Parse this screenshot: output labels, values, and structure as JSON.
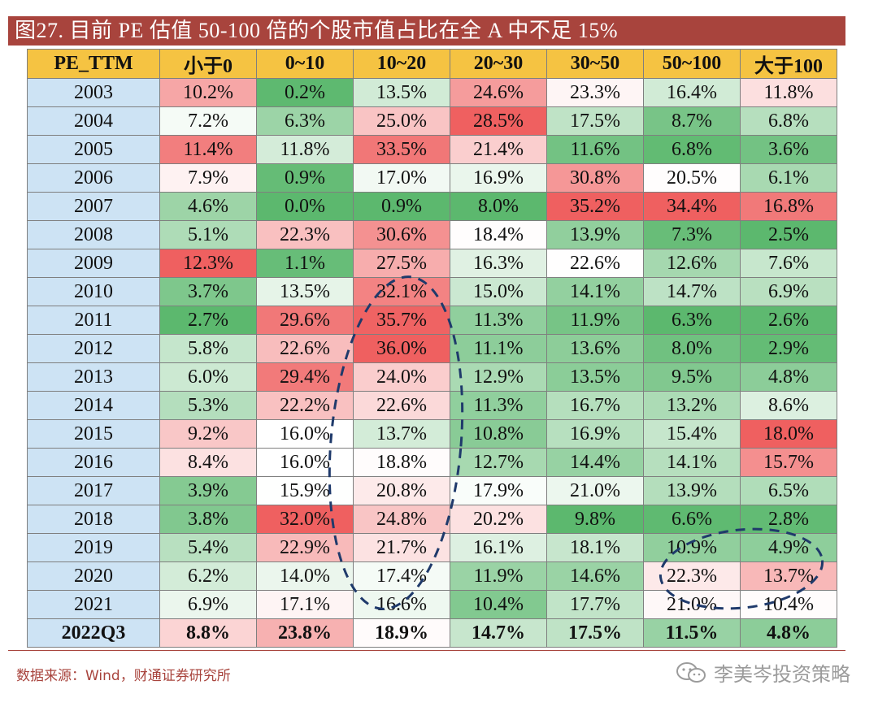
{
  "title": "图27. 目前 PE 估值 50-100 倍的个股市值占比在全 A 中不足 15%",
  "source": "数据来源：Wind，财通证券研究所",
  "watermark": "李美岑投资策略",
  "colors": {
    "title_bg": "#a8443d",
    "header_bg": "#f5c342",
    "year_bg": "#cde3f4",
    "red": "#f06363",
    "green": "#5cb96f",
    "circle": "#1f3a6b"
  },
  "chart_data": {
    "type": "table",
    "title": "图27. 目前 PE 估值 50-100 倍的个股市值占比在全 A 中不足 15%",
    "row_header": "PE_TTM",
    "columns": [
      "小于0",
      "0~10",
      "10~20",
      "20~30",
      "30~50",
      "50~100",
      "大于100"
    ],
    "rows": [
      {
        "label": "2003",
        "values": [
          "10.2%",
          "0.2%",
          "13.5%",
          "24.6%",
          "23.3%",
          "16.4%",
          "11.8%"
        ]
      },
      {
        "label": "2004",
        "values": [
          "7.2%",
          "6.3%",
          "25.0%",
          "28.5%",
          "17.5%",
          "8.7%",
          "6.8%"
        ]
      },
      {
        "label": "2005",
        "values": [
          "11.4%",
          "11.8%",
          "33.5%",
          "21.4%",
          "11.6%",
          "6.8%",
          "3.6%"
        ]
      },
      {
        "label": "2006",
        "values": [
          "7.9%",
          "0.9%",
          "17.0%",
          "16.9%",
          "30.8%",
          "20.5%",
          "6.1%"
        ]
      },
      {
        "label": "2007",
        "values": [
          "4.6%",
          "0.0%",
          "0.9%",
          "8.0%",
          "35.2%",
          "34.4%",
          "16.8%"
        ]
      },
      {
        "label": "2008",
        "values": [
          "5.1%",
          "22.3%",
          "30.6%",
          "18.4%",
          "13.9%",
          "7.3%",
          "2.5%"
        ]
      },
      {
        "label": "2009",
        "values": [
          "12.3%",
          "1.1%",
          "27.5%",
          "16.3%",
          "22.6%",
          "12.6%",
          "7.6%"
        ]
      },
      {
        "label": "2010",
        "values": [
          "3.7%",
          "13.5%",
          "32.1%",
          "15.0%",
          "14.1%",
          "14.7%",
          "6.9%"
        ]
      },
      {
        "label": "2011",
        "values": [
          "2.7%",
          "29.6%",
          "35.7%",
          "11.3%",
          "11.9%",
          "6.3%",
          "2.6%"
        ]
      },
      {
        "label": "2012",
        "values": [
          "5.8%",
          "22.6%",
          "36.0%",
          "11.1%",
          "13.6%",
          "8.0%",
          "2.9%"
        ]
      },
      {
        "label": "2013",
        "values": [
          "6.0%",
          "29.4%",
          "24.0%",
          "12.9%",
          "13.5%",
          "9.5%",
          "4.8%"
        ]
      },
      {
        "label": "2014",
        "values": [
          "5.3%",
          "22.2%",
          "22.6%",
          "11.3%",
          "16.7%",
          "13.2%",
          "8.6%"
        ]
      },
      {
        "label": "2015",
        "values": [
          "9.2%",
          "16.0%",
          "13.7%",
          "10.8%",
          "16.9%",
          "15.4%",
          "18.0%"
        ]
      },
      {
        "label": "2016",
        "values": [
          "8.4%",
          "16.0%",
          "18.8%",
          "12.7%",
          "14.4%",
          "14.1%",
          "15.7%"
        ]
      },
      {
        "label": "2017",
        "values": [
          "3.9%",
          "15.9%",
          "20.8%",
          "17.9%",
          "21.0%",
          "13.9%",
          "6.5%"
        ]
      },
      {
        "label": "2018",
        "values": [
          "3.8%",
          "32.0%",
          "24.8%",
          "20.2%",
          "9.8%",
          "6.6%",
          "2.8%"
        ]
      },
      {
        "label": "2019",
        "values": [
          "5.4%",
          "22.9%",
          "21.7%",
          "16.1%",
          "18.1%",
          "10.9%",
          "4.9%"
        ]
      },
      {
        "label": "2020",
        "values": [
          "6.2%",
          "14.0%",
          "17.4%",
          "11.9%",
          "14.6%",
          "22.3%",
          "13.7%"
        ]
      },
      {
        "label": "2021",
        "values": [
          "6.9%",
          "17.1%",
          "16.6%",
          "10.4%",
          "17.7%",
          "21.0%",
          "10.4%"
        ]
      },
      {
        "label": "2022Q3",
        "values": [
          "8.8%",
          "23.8%",
          "18.9%",
          "14.7%",
          "17.5%",
          "11.5%",
          "4.8%"
        ]
      }
    ]
  }
}
